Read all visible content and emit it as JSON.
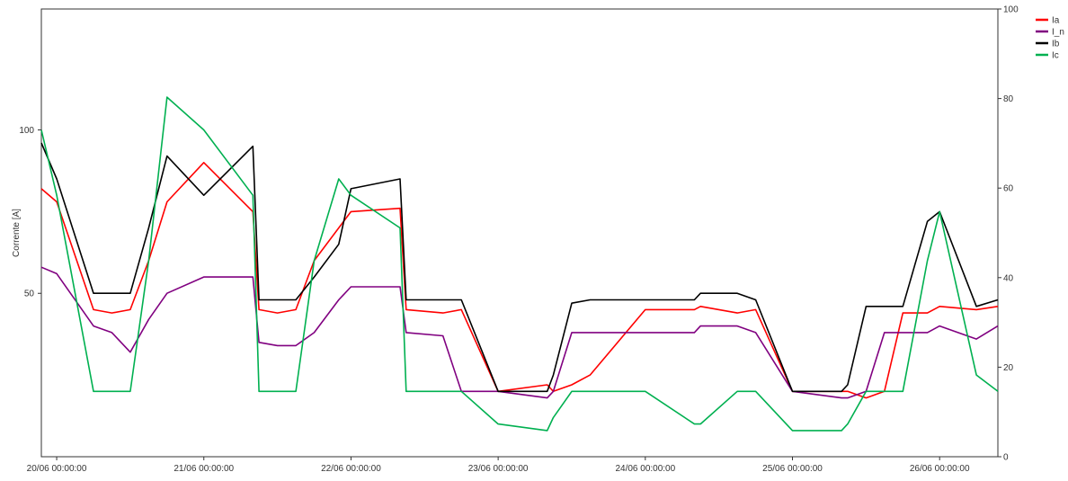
{
  "chart_data": {
    "type": "line",
    "xlabel": "",
    "ylabel": "Corrente [A]",
    "ylim": [
      0,
      137
    ],
    "y2lim": [
      0,
      100
    ],
    "xlim": [
      "19/06 21:30",
      "26/06 09:30"
    ],
    "x_ticks": [
      "20/06 00:00:00",
      "21/06 00:00:00",
      "22/06 00:00:00",
      "23/06 00:00:00",
      "24/06 00:00:00",
      "25/06 00:00:00",
      "26/06 00:00:00"
    ],
    "y_ticks": [
      50,
      100
    ],
    "y2_ticks": [
      0,
      20,
      40,
      60,
      80,
      100
    ],
    "grid": false,
    "legend_position": "top-right",
    "x": [
      "19/06 21:30",
      "20/06 00:00",
      "20/06 06:00",
      "20/06 09:00",
      "20/06 12:00",
      "20/06 15:00",
      "20/06 18:00",
      "21/06 00:00",
      "21/06 08:00",
      "21/06 09:00",
      "21/06 12:00",
      "21/06 15:00",
      "21/06 18:00",
      "21/06 22:00",
      "22/06 00:00",
      "22/06 08:00",
      "22/06 09:00",
      "22/06 15:00",
      "22/06 18:00",
      "23/06 00:00",
      "23/06 08:00",
      "23/06 09:00",
      "23/06 12:00",
      "23/06 15:00",
      "24/06 00:00",
      "24/06 08:00",
      "24/06 09:00",
      "24/06 15:00",
      "24/06 18:00",
      "25/06 00:00",
      "25/06 08:00",
      "25/06 09:00",
      "25/06 12:00",
      "25/06 15:00",
      "25/06 18:00",
      "25/06 22:00",
      "26/06 00:00",
      "26/06 06:00",
      "26/06 09:30"
    ],
    "series": [
      {
        "name": "Ia",
        "color": "#ff0000",
        "values": [
          82,
          78,
          45,
          44,
          45,
          60,
          78,
          90,
          75,
          45,
          44,
          45,
          60,
          70,
          75,
          76,
          45,
          44,
          45,
          20,
          22,
          20,
          22,
          25,
          45,
          45,
          46,
          44,
          45,
          20,
          20,
          20,
          18,
          20,
          44,
          44,
          46,
          45,
          46
        ]
      },
      {
        "name": "I_n",
        "color": "#800080",
        "values": [
          58,
          56,
          40,
          38,
          32,
          42,
          50,
          55,
          55,
          35,
          34,
          34,
          38,
          48,
          52,
          52,
          38,
          37,
          20,
          20,
          18,
          20,
          38,
          38,
          38,
          38,
          40,
          40,
          38,
          20,
          18,
          18,
          20,
          38,
          38,
          38,
          40,
          36,
          40
        ]
      },
      {
        "name": "Ib",
        "color": "#000000",
        "values": [
          96,
          85,
          50,
          50,
          50,
          70,
          92,
          80,
          95,
          48,
          48,
          48,
          55,
          65,
          82,
          85,
          48,
          48,
          48,
          20,
          20,
          25,
          47,
          48,
          48,
          48,
          50,
          50,
          48,
          20,
          20,
          22,
          46,
          46,
          46,
          72,
          75,
          46,
          48
        ]
      },
      {
        "name": "Ic",
        "color": "#00b050",
        "values": [
          100,
          80,
          20,
          20,
          20,
          60,
          110,
          100,
          80,
          20,
          20,
          20,
          60,
          85,
          80,
          70,
          20,
          20,
          20,
          10,
          8,
          12,
          20,
          20,
          20,
          10,
          10,
          20,
          20,
          8,
          8,
          10,
          20,
          20,
          20,
          60,
          75,
          25,
          20
        ]
      }
    ]
  }
}
